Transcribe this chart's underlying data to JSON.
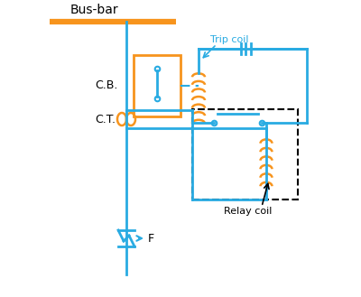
{
  "bg_color": "#ffffff",
  "blue": "#29abe2",
  "orange": "#f7941d",
  "black": "#000000",
  "labels": {
    "busbar": "Bus-bar",
    "cb": "C.B.",
    "ct": "C.T.",
    "f": "F",
    "trip_coil": "Trip coil",
    "relay_coil": "Relay coil"
  },
  "figsize": [
    4.0,
    3.29
  ],
  "dpi": 100
}
